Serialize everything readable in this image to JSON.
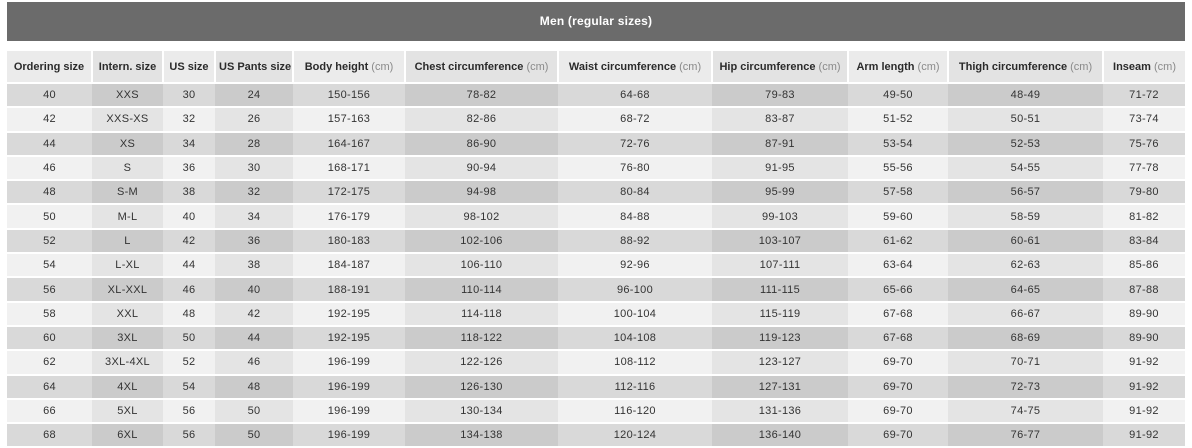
{
  "title": "Men (regular sizes)",
  "colors": {
    "title_bar_bg": "#6b6b6b",
    "title_text": "#ffffff",
    "header_bg_light": "#ebebeb",
    "header_bg_dark": "#e3e3e3",
    "row_dark_col_light": "#d9d9d9",
    "row_dark_col_dark": "#cbcbcb",
    "row_light_col_light": "#f1f1f1",
    "row_light_col_dark": "#e4e4e4",
    "body_text": "#333333",
    "unit_text": "#8a8a8a"
  },
  "table": {
    "columns": [
      {
        "label": "Ordering size",
        "unit": ""
      },
      {
        "label": "Intern. size",
        "unit": ""
      },
      {
        "label": "US size",
        "unit": ""
      },
      {
        "label": "US Pants size",
        "unit": ""
      },
      {
        "label": "Body height",
        "unit": "(cm)"
      },
      {
        "label": "Chest circumference",
        "unit": "(cm)"
      },
      {
        "label": "Waist circumference",
        "unit": "(cm)"
      },
      {
        "label": "Hip circumference",
        "unit": "(cm)"
      },
      {
        "label": "Arm length",
        "unit": "(cm)"
      },
      {
        "label": "Thigh circumference",
        "unit": "(cm)"
      },
      {
        "label": "Inseam",
        "unit": "(cm)"
      }
    ],
    "rows": [
      [
        "40",
        "XXS",
        "30",
        "24",
        "150-156",
        "78-82",
        "64-68",
        "79-83",
        "49-50",
        "48-49",
        "71-72"
      ],
      [
        "42",
        "XXS-XS",
        "32",
        "26",
        "157-163",
        "82-86",
        "68-72",
        "83-87",
        "51-52",
        "50-51",
        "73-74"
      ],
      [
        "44",
        "XS",
        "34",
        "28",
        "164-167",
        "86-90",
        "72-76",
        "87-91",
        "53-54",
        "52-53",
        "75-76"
      ],
      [
        "46",
        "S",
        "36",
        "30",
        "168-171",
        "90-94",
        "76-80",
        "91-95",
        "55-56",
        "54-55",
        "77-78"
      ],
      [
        "48",
        "S-M",
        "38",
        "32",
        "172-175",
        "94-98",
        "80-84",
        "95-99",
        "57-58",
        "56-57",
        "79-80"
      ],
      [
        "50",
        "M-L",
        "40",
        "34",
        "176-179",
        "98-102",
        "84-88",
        "99-103",
        "59-60",
        "58-59",
        "81-82"
      ],
      [
        "52",
        "L",
        "42",
        "36",
        "180-183",
        "102-106",
        "88-92",
        "103-107",
        "61-62",
        "60-61",
        "83-84"
      ],
      [
        "54",
        "L-XL",
        "44",
        "38",
        "184-187",
        "106-110",
        "92-96",
        "107-111",
        "63-64",
        "62-63",
        "85-86"
      ],
      [
        "56",
        "XL-XXL",
        "46",
        "40",
        "188-191",
        "110-114",
        "96-100",
        "111-115",
        "65-66",
        "64-65",
        "87-88"
      ],
      [
        "58",
        "XXL",
        "48",
        "42",
        "192-195",
        "114-118",
        "100-104",
        "115-119",
        "67-68",
        "66-67",
        "89-90"
      ],
      [
        "60",
        "3XL",
        "50",
        "44",
        "192-195",
        "118-122",
        "104-108",
        "119-123",
        "67-68",
        "68-69",
        "89-90"
      ],
      [
        "62",
        "3XL-4XL",
        "52",
        "46",
        "196-199",
        "122-126",
        "108-112",
        "123-127",
        "69-70",
        "70-71",
        "91-92"
      ],
      [
        "64",
        "4XL",
        "54",
        "48",
        "196-199",
        "126-130",
        "112-116",
        "127-131",
        "69-70",
        "72-73",
        "91-92"
      ],
      [
        "66",
        "5XL",
        "56",
        "50",
        "196-199",
        "130-134",
        "116-120",
        "131-136",
        "69-70",
        "74-75",
        "91-92"
      ],
      [
        "68",
        "6XL",
        "56",
        "50",
        "196-199",
        "134-138",
        "120-124",
        "136-140",
        "69-70",
        "76-77",
        "91-92"
      ]
    ]
  }
}
